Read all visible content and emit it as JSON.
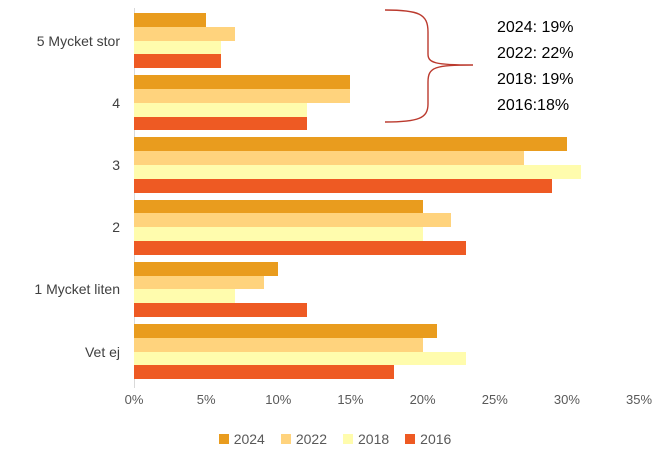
{
  "chart_data": {
    "type": "bar",
    "orientation": "horizontal",
    "title": "",
    "xlabel": "",
    "ylabel": "",
    "categories": [
      "5 Mycket stor",
      "4",
      "3",
      "2",
      "1 Mycket liten",
      "Vet ej"
    ],
    "series": [
      {
        "name": "2024",
        "color": "#E99C1E",
        "values": [
          5,
          15,
          30,
          20,
          10,
          21
        ]
      },
      {
        "name": "2022",
        "color": "#FFD37D",
        "values": [
          7,
          15,
          27,
          22,
          9,
          20
        ]
      },
      {
        "name": "2018",
        "color": "#FFFCAD",
        "values": [
          6,
          12,
          31,
          20,
          7,
          23
        ]
      },
      {
        "name": "2016",
        "color": "#EE5A23",
        "values": [
          6,
          12,
          29,
          23,
          12,
          18
        ]
      }
    ],
    "xlim": [
      0,
      35
    ],
    "x_ticks": [
      {
        "label": "0%",
        "value": 0
      },
      {
        "label": "5%",
        "value": 5
      },
      {
        "label": "10%",
        "value": 10
      },
      {
        "label": "15%",
        "value": 15
      },
      {
        "label": "20%",
        "value": 20
      },
      {
        "label": "25%",
        "value": 25
      },
      {
        "label": "30%",
        "value": 30
      },
      {
        "label": "35%",
        "value": 35
      }
    ],
    "grid": false,
    "legend_position": "bottom"
  },
  "annotation": {
    "lines": [
      "2024: 19%",
      "2022: 22%",
      "2018: 19%",
      "2016:18%"
    ],
    "text_color": "#000000",
    "brace_color": "#BB3A2E"
  },
  "colors": {
    "background": "#FFFFFF",
    "axis_line": "#D9D9D9",
    "tick_text": "#595959",
    "category_text": "#404040",
    "legend_text": "#595959"
  }
}
